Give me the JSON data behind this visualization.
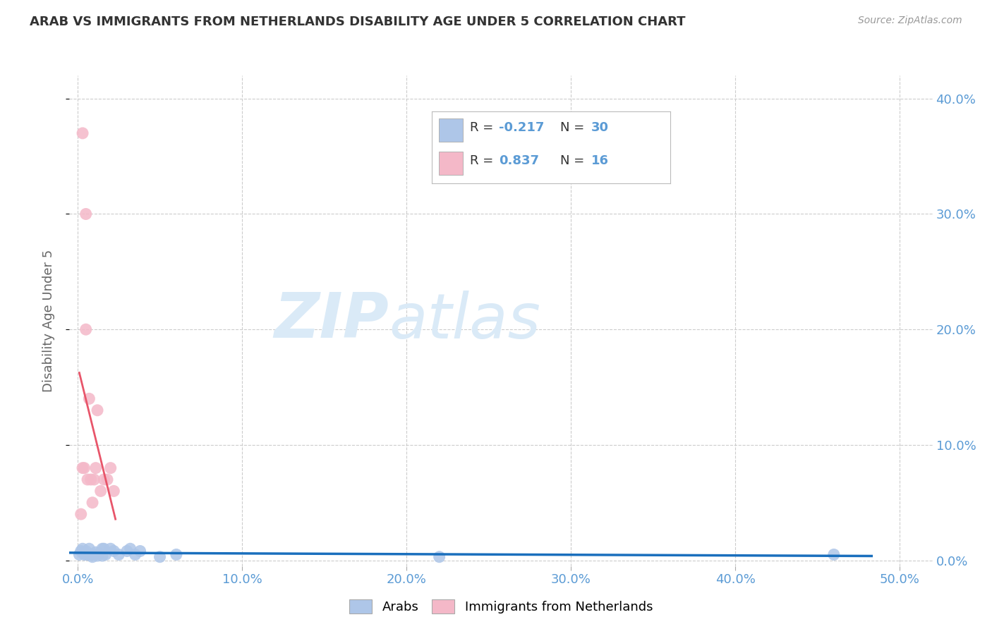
{
  "title": "ARAB VS IMMIGRANTS FROM NETHERLANDS DISABILITY AGE UNDER 5 CORRELATION CHART",
  "source": "Source: ZipAtlas.com",
  "xlabel_ticks": [
    "0.0%",
    "10.0%",
    "20.0%",
    "30.0%",
    "40.0%",
    "50.0%"
  ],
  "xlabel_tick_vals": [
    0.0,
    0.1,
    0.2,
    0.3,
    0.4,
    0.5
  ],
  "ylabel_ticks": [
    "0.0%",
    "10.0%",
    "20.0%",
    "30.0%",
    "40.0%"
  ],
  "ylabel_tick_vals": [
    0.0,
    0.1,
    0.2,
    0.3,
    0.4
  ],
  "xlim": [
    -0.005,
    0.52
  ],
  "ylim": [
    -0.005,
    0.42
  ],
  "ylabel": "Disability Age Under 5",
  "legend_series": [
    {
      "label": "Arabs",
      "color": "#aec6e8",
      "R": -0.217,
      "N": 30
    },
    {
      "label": "Immigrants from Netherlands",
      "color": "#f4b8c8",
      "R": 0.837,
      "N": 16
    }
  ],
  "arab_x": [
    0.001,
    0.002,
    0.003,
    0.004,
    0.005,
    0.005,
    0.006,
    0.007,
    0.007,
    0.008,
    0.009,
    0.01,
    0.011,
    0.012,
    0.013,
    0.015,
    0.015,
    0.016,
    0.017,
    0.02,
    0.022,
    0.025,
    0.03,
    0.032,
    0.035,
    0.038,
    0.05,
    0.06,
    0.22,
    0.46
  ],
  "arab_y": [
    0.005,
    0.008,
    0.01,
    0.005,
    0.005,
    0.008,
    0.005,
    0.005,
    0.01,
    0.005,
    0.003,
    0.005,
    0.007,
    0.004,
    0.006,
    0.01,
    0.004,
    0.01,
    0.005,
    0.01,
    0.008,
    0.005,
    0.008,
    0.01,
    0.005,
    0.008,
    0.003,
    0.005,
    0.003,
    0.005
  ],
  "neth_x": [
    0.002,
    0.003,
    0.004,
    0.005,
    0.006,
    0.007,
    0.008,
    0.009,
    0.01,
    0.011,
    0.012,
    0.014,
    0.016,
    0.018,
    0.02,
    0.022
  ],
  "neth_y": [
    0.04,
    0.08,
    0.08,
    0.2,
    0.07,
    0.14,
    0.07,
    0.05,
    0.07,
    0.08,
    0.13,
    0.06,
    0.07,
    0.07,
    0.08,
    0.06
  ],
  "neth_high_x": [
    0.003
  ],
  "neth_high_y": [
    0.37
  ],
  "neth_mid_x": [
    0.005
  ],
  "neth_mid_y": [
    0.3
  ],
  "arab_line_color": "#1a6fbd",
  "neth_line_color": "#e8556a",
  "background_color": "#ffffff",
  "grid_color": "#cccccc",
  "title_color": "#333333",
  "axis_label_color": "#5b9bd5",
  "watermark_zip": "ZIP",
  "watermark_atlas": "atlas",
  "watermark_color": "#daeaf7"
}
